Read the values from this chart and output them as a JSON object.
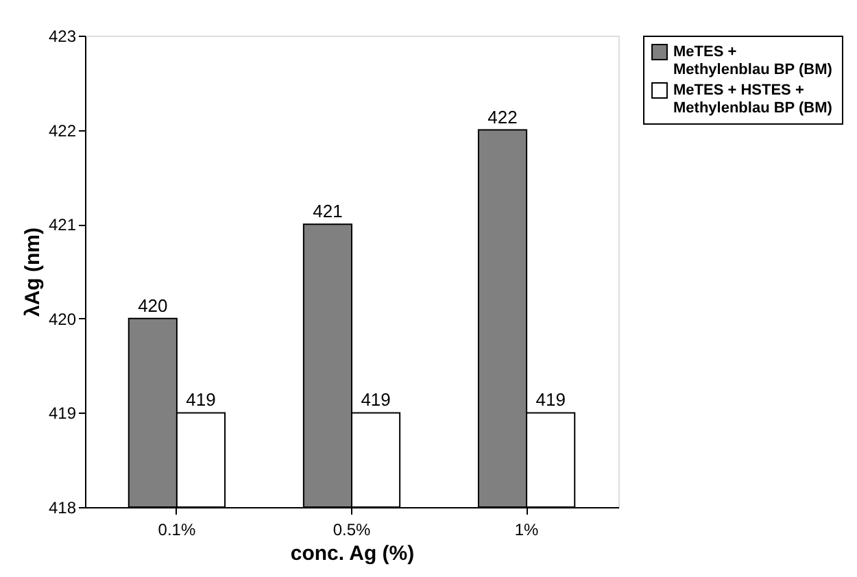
{
  "chart_data": {
    "type": "bar",
    "xlabel": "conc. Ag (%)",
    "ylabel": "λAg (nm)",
    "categories": [
      "0.1%",
      "0.5%",
      "1%"
    ],
    "series": [
      {
        "name": "MeTES + Methylenblau BP (BM)",
        "color": "#808080",
        "values": [
          420,
          421,
          422
        ]
      },
      {
        "name": "MeTES + HSTES + Methylenblau BP (BM)",
        "color": "#ffffff",
        "values": [
          419,
          419,
          419
        ]
      }
    ],
    "ylim": [
      418,
      423
    ],
    "yticks": [
      418,
      419,
      420,
      421,
      422,
      423
    ],
    "grid": false,
    "legend": "right",
    "data_labels": true
  }
}
